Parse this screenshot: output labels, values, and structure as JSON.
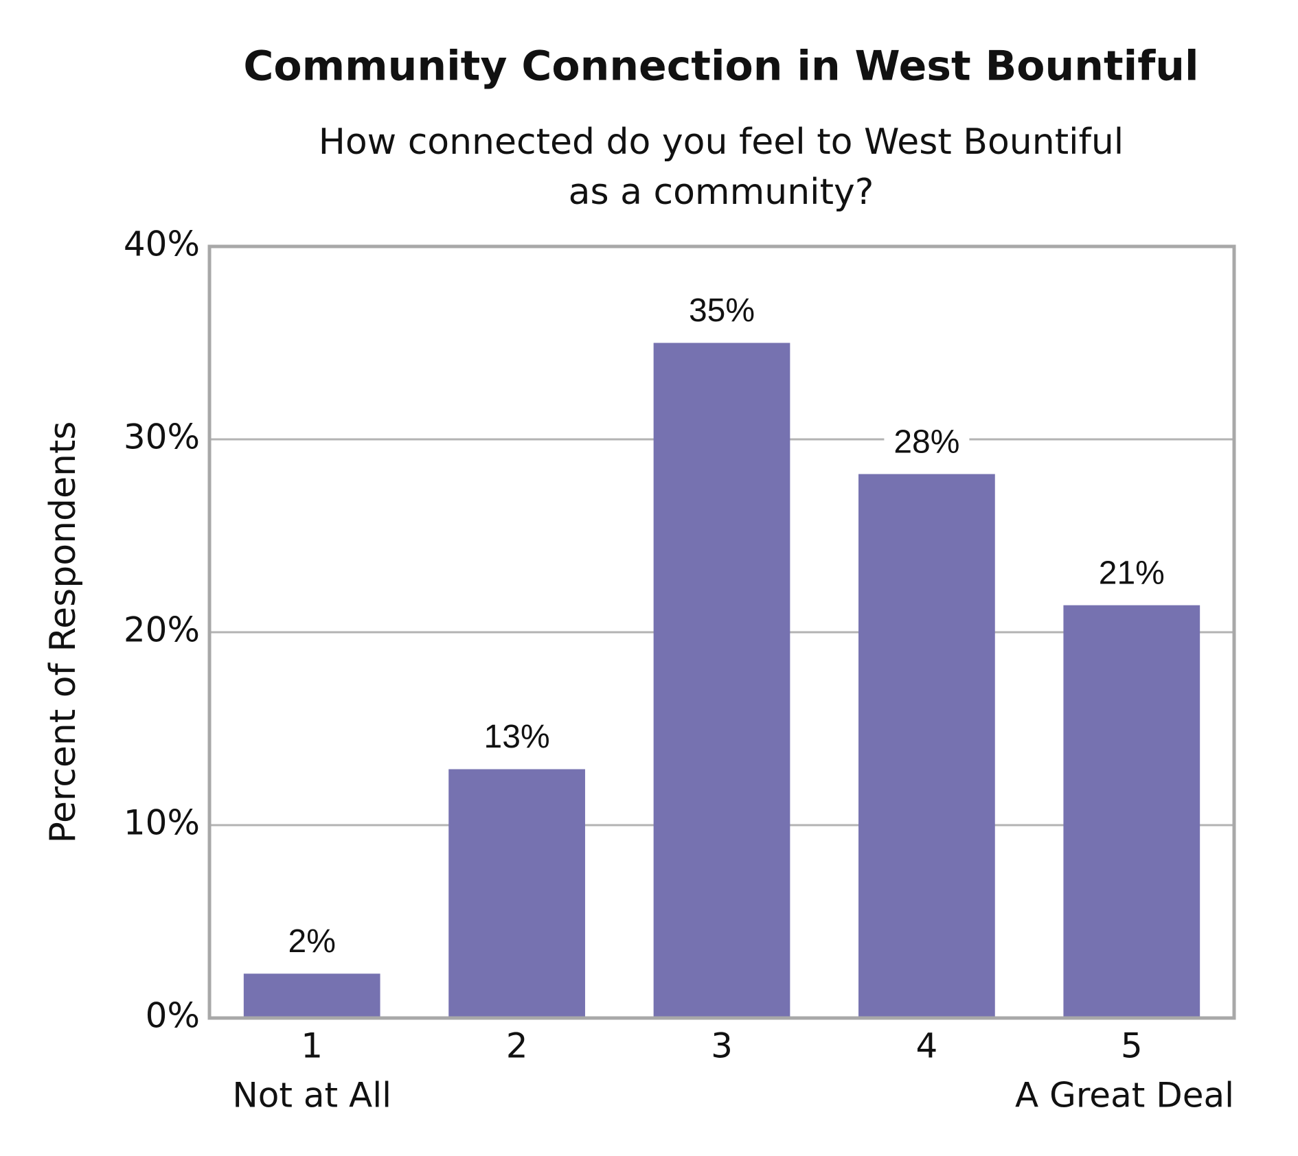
{
  "chart_data": {
    "type": "bar",
    "title": "Community Connection in West Bountiful",
    "subtitle": [
      "How connected do you feel to West Bountiful",
      "as a community?"
    ],
    "y_label": "Percent of Respondents",
    "categories": [
      "1",
      "2",
      "3",
      "4",
      "5"
    ],
    "category_sublabels": [
      "Not at All",
      null,
      null,
      null,
      "A Great Deal"
    ],
    "values": [
      2.3,
      12.9,
      35,
      28.2,
      21.4
    ],
    "value_labels": [
      "2%",
      "13%",
      "35%",
      "28%",
      "21%"
    ],
    "color": "#7672b0",
    "ylim": [
      0,
      40
    ],
    "yticks": [
      {
        "value": 0,
        "label": "0%"
      },
      {
        "value": 10,
        "label": "10%"
      },
      {
        "value": 20,
        "label": "20%"
      },
      {
        "value": 30,
        "label": "30%"
      },
      {
        "value": 40,
        "label": "40%"
      }
    ],
    "grid": true
  }
}
